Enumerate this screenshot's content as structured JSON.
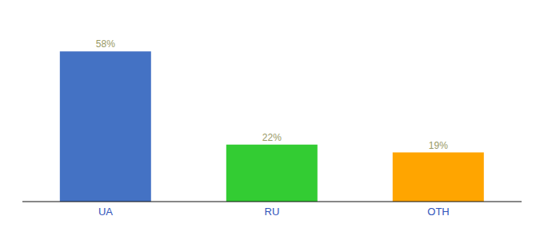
{
  "chart_data": {
    "type": "bar",
    "categories": [
      "UA",
      "RU",
      "OTH"
    ],
    "values": [
      58,
      22,
      19
    ],
    "value_labels": [
      "58%",
      "22%",
      "19%"
    ],
    "colors": [
      "#4472C4",
      "#33CC33",
      "#FFA500"
    ],
    "ylim": [
      0,
      68
    ],
    "data_labels": true,
    "tick_labels": "x"
  }
}
